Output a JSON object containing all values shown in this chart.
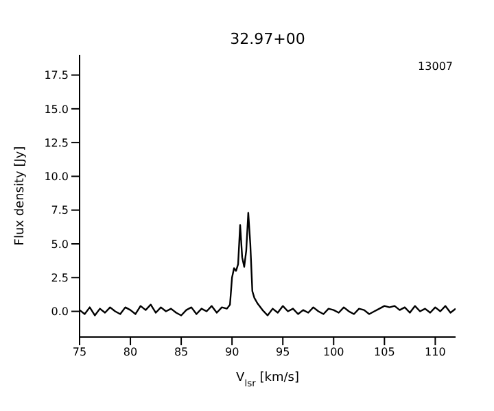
{
  "chart_data": {
    "type": "line",
    "title": "32.97+00",
    "xlabel": "V$_{lsr}$ [km/s]",
    "ylabel": "Flux density [Jy]",
    "annotations": [
      "13007"
    ],
    "x": [
      75,
      75.5,
      76,
      76.5,
      77,
      77.5,
      78,
      78.5,
      79,
      79.5,
      80,
      80.5,
      81,
      81.5,
      82,
      82.5,
      83,
      83.5,
      84,
      84.5,
      85,
      85.5,
      86,
      86.5,
      87,
      87.5,
      88,
      88.5,
      89,
      89.5,
      89.8,
      90,
      90.2,
      90.4,
      90.6,
      90.8,
      91,
      91.2,
      91.4,
      91.6,
      91.8,
      92,
      92.2,
      92.5,
      93,
      93.5,
      94,
      94.5,
      95,
      95.5,
      96,
      96.5,
      97,
      97.5,
      98,
      98.5,
      99,
      99.5,
      100,
      100.5,
      101,
      101.5,
      102,
      102.5,
      103,
      103.5,
      104,
      104.5,
      105,
      105.5,
      106,
      106.5,
      107,
      107.5,
      108,
      108.5,
      109,
      109.5,
      110,
      110.5,
      111,
      111.5,
      112
    ],
    "series": [
      {
        "color": "#000000",
        "values": [
          0.1,
          -0.2,
          0.3,
          -0.3,
          0.2,
          -0.1,
          0.3,
          0.0,
          -0.2,
          0.3,
          0.1,
          -0.2,
          0.4,
          0.1,
          0.5,
          -0.1,
          0.3,
          0.0,
          0.2,
          -0.1,
          -0.3,
          0.1,
          0.3,
          -0.2,
          0.2,
          0.0,
          0.4,
          -0.1,
          0.3,
          0.2,
          0.5,
          2.5,
          3.2,
          3.0,
          3.5,
          6.4,
          4.0,
          3.3,
          4.5,
          7.3,
          5.0,
          1.5,
          1.0,
          0.6,
          0.1,
          -0.3,
          0.2,
          -0.1,
          0.4,
          0.0,
          0.2,
          -0.2,
          0.1,
          -0.1,
          0.3,
          0.0,
          -0.2,
          0.2,
          0.1,
          -0.1,
          0.3,
          0.0,
          -0.2,
          0.2,
          0.1,
          -0.2,
          0.0,
          0.2,
          0.4,
          0.3,
          0.4,
          0.1,
          0.3,
          -0.1,
          0.4,
          0.0,
          0.2,
          -0.1,
          0.3,
          0.0,
          0.4,
          -0.1,
          0.2
        ]
      }
    ],
    "xlim": [
      75,
      112
    ],
    "xticks": [
      75,
      80,
      85,
      90,
      95,
      100,
      105,
      110
    ],
    "ylim": [
      -1.9,
      19
    ],
    "yticks": [
      {
        "value": 0,
        "label": "0.0"
      },
      {
        "value": 2.5,
        "label": "2.5"
      },
      {
        "value": 5,
        "label": "5.0"
      },
      {
        "value": 7.5,
        "label": "7.5"
      },
      {
        "value": 10,
        "label": "10.0"
      },
      {
        "value": 12.5,
        "label": "12.5"
      },
      {
        "value": 15,
        "label": "15.0"
      },
      {
        "value": 17.5,
        "label": "17.5"
      }
    ],
    "grid": false,
    "legend": false,
    "marker": "none",
    "line_style": "solid"
  }
}
